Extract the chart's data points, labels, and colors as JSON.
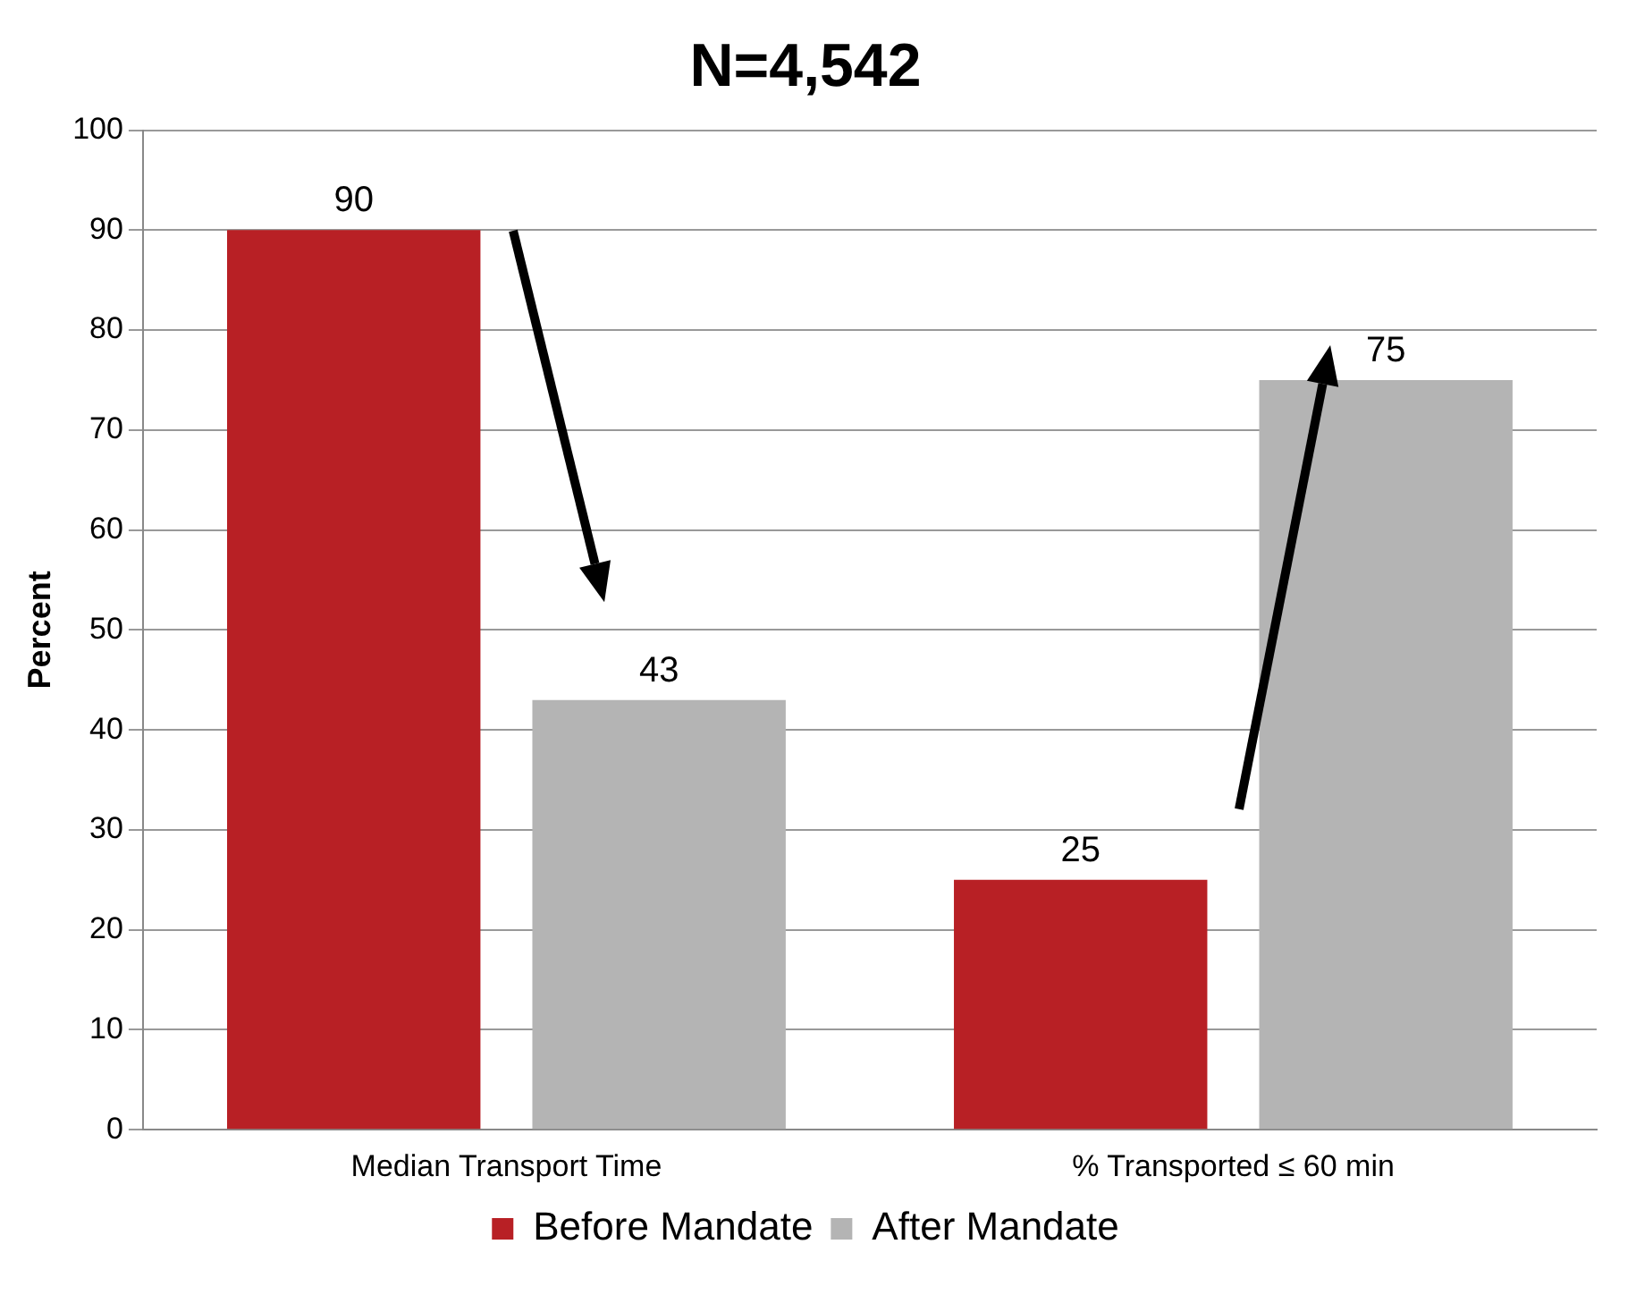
{
  "chart_data": {
    "type": "bar",
    "title": "N=4,542",
    "ylabel": "Percent",
    "categories": [
      "Median Transport Time",
      "% Transported ≤ 60 min"
    ],
    "series": [
      {
        "name": "Before Mandate",
        "color": "#b82025",
        "values": [
          90,
          25
        ]
      },
      {
        "name": "After Mandate",
        "color": "#b4b4b4",
        "values": [
          43,
          75
        ]
      }
    ],
    "ylim": [
      0,
      100
    ],
    "yticks": [
      0,
      10,
      20,
      30,
      40,
      50,
      60,
      70,
      80,
      90,
      100
    ],
    "grid": "y",
    "legend": "bottom",
    "data_labels": true
  }
}
